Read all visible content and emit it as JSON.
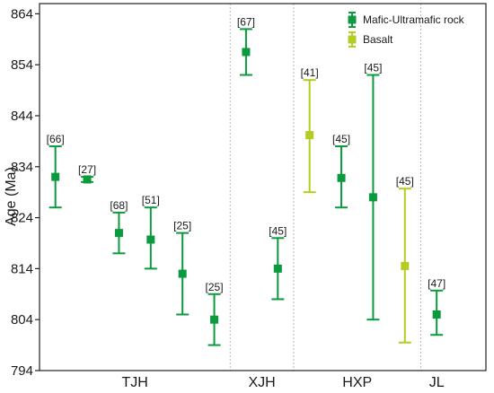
{
  "chart_data": {
    "type": "scatter",
    "ylabel": "Age (Ma)",
    "ylim": [
      794,
      866
    ],
    "yticks": [
      794,
      804,
      814,
      824,
      834,
      844,
      854,
      864
    ],
    "groups": [
      {
        "name": "TJH",
        "points": [
          1,
          2,
          3,
          4,
          5,
          6
        ]
      },
      {
        "name": "XJH",
        "points": [
          7,
          8
        ]
      },
      {
        "name": "HXP",
        "points": [
          9,
          10,
          11,
          12
        ]
      },
      {
        "name": "JL",
        "points": [
          13
        ]
      }
    ],
    "legend": {
      "position": "top-right",
      "entries": [
        "Mafic-Ultramafic rock",
        "Basalt"
      ]
    },
    "colors": {
      "Mafic-Ultramafic rock": "#0b9a3e",
      "Basalt": "#b5cc22"
    },
    "series": [
      {
        "name": "Mafic-Ultramafic rock",
        "points": [
          {
            "x": 1,
            "y": 832.0,
            "low": 826.0,
            "high": 838.0,
            "label": "[66]"
          },
          {
            "x": 2,
            "y": 831.5,
            "low": 831.0,
            "high": 832.0,
            "label": "[27]"
          },
          {
            "x": 3,
            "y": 821.0,
            "low": 817.0,
            "high": 825.0,
            "label": "[68]"
          },
          {
            "x": 4,
            "y": 819.7,
            "low": 814.0,
            "high": 826.0,
            "label": "[51]"
          },
          {
            "x": 5,
            "y": 813.0,
            "low": 805.0,
            "high": 821.0,
            "label": "[25]"
          },
          {
            "x": 6,
            "y": 804.0,
            "low": 799.0,
            "high": 809.0,
            "label": "[25]"
          },
          {
            "x": 7,
            "y": 856.5,
            "low": 852.0,
            "high": 861.0,
            "label": "[67]"
          },
          {
            "x": 8,
            "y": 814.0,
            "low": 808.0,
            "high": 820.0,
            "label": "[45]"
          },
          {
            "x": 10,
            "y": 831.8,
            "low": 826.0,
            "high": 838.0,
            "label": "[45]"
          },
          {
            "x": 11,
            "y": 828.0,
            "low": 804.0,
            "high": 852.0,
            "label": "[45]"
          },
          {
            "x": 13,
            "y": 805.0,
            "low": 801.0,
            "high": 809.7,
            "label": "[47]"
          }
        ]
      },
      {
        "name": "Basalt",
        "points": [
          {
            "x": 9,
            "y": 840.2,
            "low": 829.0,
            "high": 851.0,
            "label": "[41]"
          },
          {
            "x": 12,
            "y": 814.5,
            "low": 799.5,
            "high": 829.7,
            "label": "[45]"
          }
        ]
      }
    ]
  }
}
